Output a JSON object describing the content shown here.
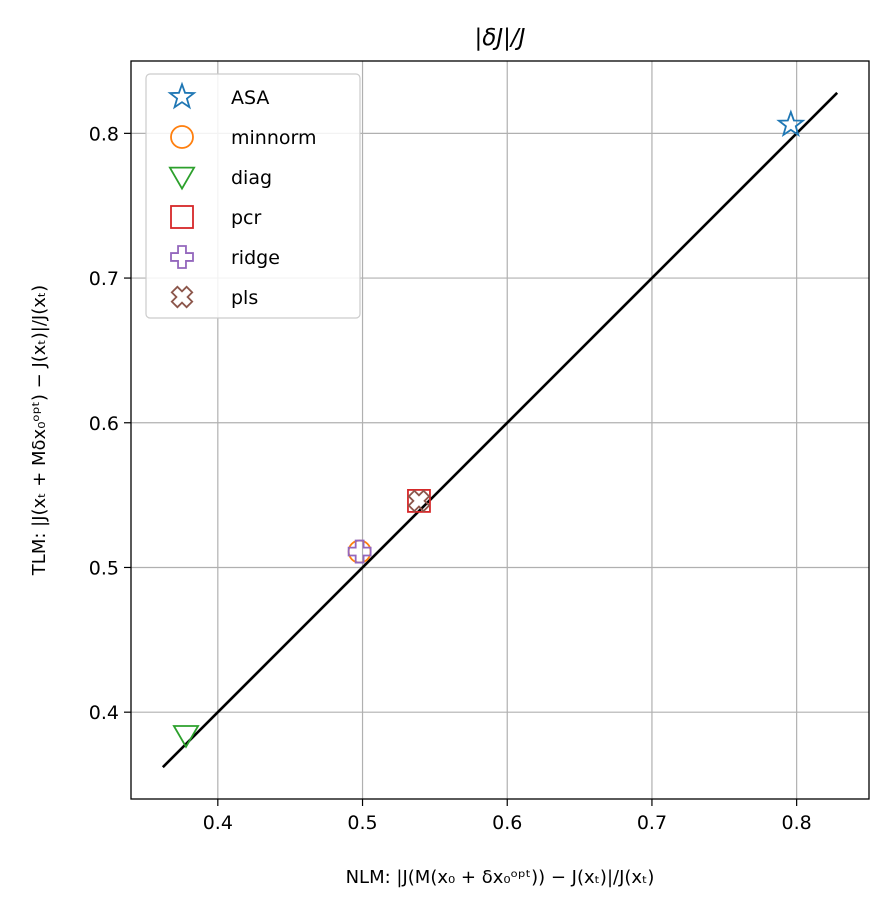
{
  "chart_data": {
    "type": "scatter",
    "title": "|δJ|/J",
    "xlabel": "NLM: |J(M(x₀ + δx₀ᵒᵖᵗ)) − J(xₜ)|/J(xₜ)",
    "ylabel": "TLM: |J(xₜ + Mδx₀ᵒᵖᵗ) − J(xₜ)|/J(xₜ)",
    "xlim": [
      0.34,
      0.85
    ],
    "ylim": [
      0.34,
      0.85
    ],
    "xticks": [
      0.4,
      0.5,
      0.6,
      0.7,
      0.8
    ],
    "yticks": [
      0.4,
      0.5,
      0.6,
      0.7,
      0.8
    ],
    "xtick_labels": [
      "0.4",
      "0.5",
      "0.6",
      "0.7",
      "0.8"
    ],
    "ytick_labels": [
      "0.4",
      "0.5",
      "0.6",
      "0.7",
      "0.8"
    ],
    "grid": true,
    "legend_position": "top-left",
    "reference_line": {
      "x": [
        0.362,
        0.828
      ],
      "y": [
        0.362,
        0.828
      ],
      "color": "#000000"
    },
    "series": [
      {
        "name": "ASA",
        "marker": "star",
        "color": "#1f77b4",
        "x": [
          0.796
        ],
        "y": [
          0.806
        ]
      },
      {
        "name": "minnorm",
        "marker": "circle",
        "color": "#ff7f0e",
        "x": [
          0.498
        ],
        "y": [
          0.511
        ]
      },
      {
        "name": "diag",
        "marker": "triangle-down",
        "color": "#2ca02c",
        "x": [
          0.378
        ],
        "y": [
          0.384
        ]
      },
      {
        "name": "pcr",
        "marker": "square",
        "color": "#d62728",
        "x": [
          0.539
        ],
        "y": [
          0.546
        ]
      },
      {
        "name": "ridge",
        "marker": "plus",
        "color": "#9467bd",
        "x": [
          0.498
        ],
        "y": [
          0.511
        ]
      },
      {
        "name": "pls",
        "marker": "x",
        "color": "#8c564b",
        "x": [
          0.539
        ],
        "y": [
          0.546
        ]
      }
    ]
  }
}
